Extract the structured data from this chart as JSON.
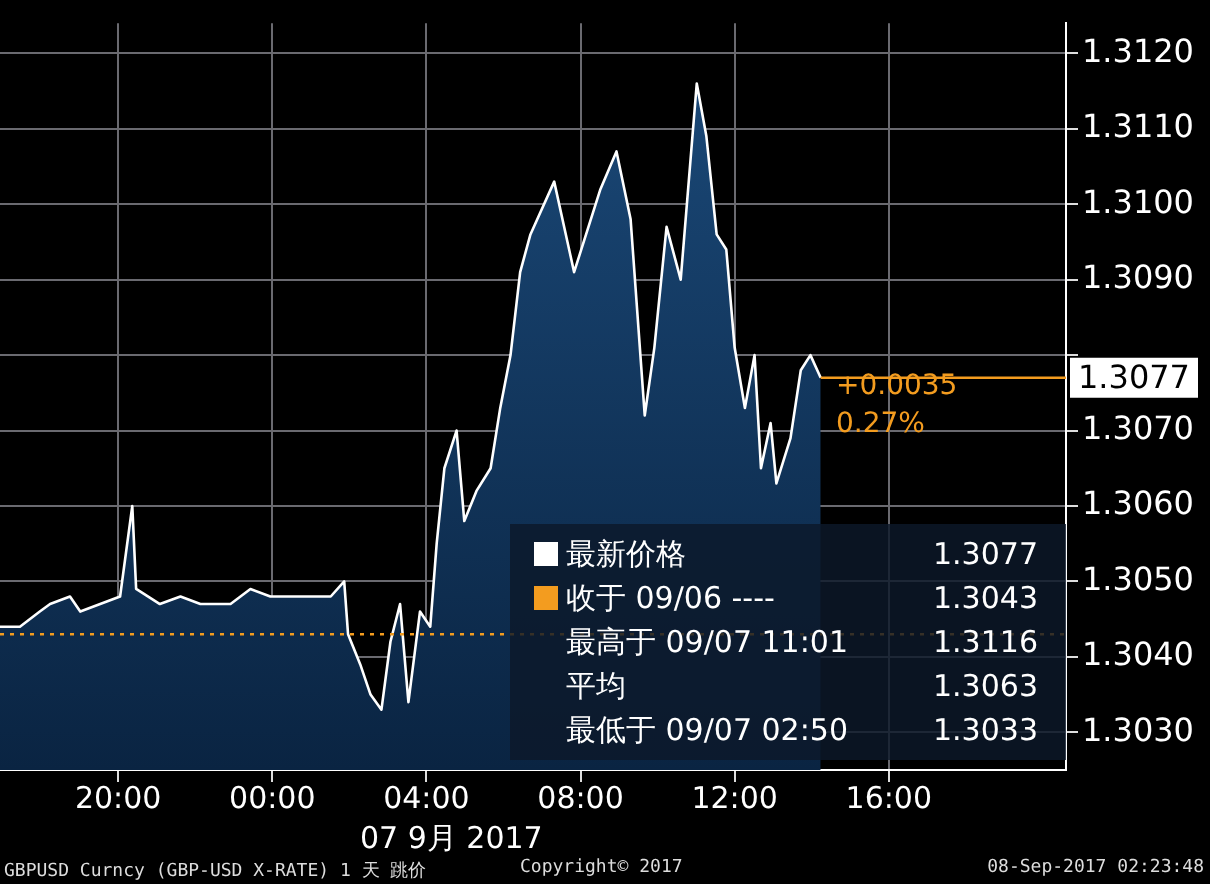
{
  "chart_data": {
    "type": "area",
    "xlabel": "07 9月 2017",
    "x": [
      "2017-09-06T16:56",
      "2017-09-06T17:27",
      "2017-09-06T17:58",
      "2017-09-06T18:14",
      "2017-09-06T18:45",
      "2017-09-06T19:01",
      "2017-09-06T19:32",
      "2017-09-06T20:03",
      "2017-09-06T20:22",
      "2017-09-06T20:28",
      "2017-09-06T21:05",
      "2017-09-06T21:37",
      "2017-09-06T22:08",
      "2017-09-06T22:55",
      "2017-09-06T23:26",
      "2017-09-06T23:57",
      "2017-09-07T00:44",
      "2017-09-07T01:31",
      "2017-09-07T01:52",
      "2017-09-07T01:58",
      "2017-09-07T02:17",
      "2017-09-07T02:33",
      "2017-09-07T02:50",
      "2017-09-07T03:04",
      "2017-09-07T03:19",
      "2017-09-07T03:32",
      "2017-09-07T03:50",
      "2017-09-07T04:06",
      "2017-09-07T04:16",
      "2017-09-07T04:28",
      "2017-09-07T04:47",
      "2017-09-07T04:59",
      "2017-09-07T05:18",
      "2017-09-07T05:40",
      "2017-09-07T05:55",
      "2017-09-07T06:11",
      "2017-09-07T06:26",
      "2017-09-07T06:42",
      "2017-09-07T07:19",
      "2017-09-07T07:50",
      "2017-09-07T08:31",
      "2017-09-07T08:56",
      "2017-09-07T09:18",
      "2017-09-07T09:40",
      "2017-09-07T09:55",
      "2017-09-07T10:14",
      "2017-09-07T10:36",
      "2017-09-07T11:01",
      "2017-09-07T11:16",
      "2017-09-07T11:32",
      "2017-09-07T11:47",
      "2017-09-07T12:00",
      "2017-09-07T12:16",
      "2017-09-07T12:31",
      "2017-09-07T12:41",
      "2017-09-07T12:56",
      "2017-09-07T13:05",
      "2017-09-07T13:27",
      "2017-09-07T13:43",
      "2017-09-07T13:58",
      "2017-09-07T14:14"
    ],
    "series": [
      {
        "name": "最新价格",
        "color": "#ffffff",
        "values": [
          1.3044,
          1.3044,
          1.3046,
          1.3047,
          1.3048,
          1.3046,
          1.3047,
          1.3048,
          1.306,
          1.3049,
          1.3047,
          1.3048,
          1.3047,
          1.3047,
          1.3049,
          1.3048,
          1.3048,
          1.3048,
          1.305,
          1.3043,
          1.3039,
          1.3035,
          1.3033,
          1.3042,
          1.3047,
          1.3034,
          1.3046,
          1.3044,
          1.3055,
          1.3065,
          1.307,
          1.3058,
          1.3062,
          1.3065,
          1.3073,
          1.308,
          1.3091,
          1.3096,
          1.3103,
          1.3091,
          1.3102,
          1.3107,
          1.3098,
          1.3072,
          1.3081,
          1.3097,
          1.309,
          1.3116,
          1.3109,
          1.3096,
          1.3094,
          1.3081,
          1.3073,
          1.308,
          1.3065,
          1.3071,
          1.3063,
          1.3069,
          1.3078,
          1.308,
          1.3077
        ]
      }
    ],
    "xlim": [
      "2017-09-06T16:56",
      "2017-09-07T20:36"
    ],
    "xticks": [
      {
        "value": "2017-09-06T20:00",
        "label": "20:00"
      },
      {
        "value": "2017-09-07T00:00",
        "label": "00:00"
      },
      {
        "value": "2017-09-07T04:00",
        "label": "04:00"
      },
      {
        "value": "2017-09-07T08:00",
        "label": "08:00"
      },
      {
        "value": "2017-09-07T12:00",
        "label": "12:00"
      },
      {
        "value": "2017-09-07T16:00",
        "label": "16:00"
      }
    ],
    "ylim": [
      1.3025,
      1.3124
    ],
    "yticks": [
      {
        "value": 1.303,
        "label": "1.3030"
      },
      {
        "value": 1.304,
        "label": "1.3040"
      },
      {
        "value": 1.305,
        "label": "1.3050"
      },
      {
        "value": 1.306,
        "label": "1.3060"
      },
      {
        "value": 1.307,
        "label": "1.3070"
      },
      {
        "value": 1.308,
        "label": null
      },
      {
        "value": 1.309,
        "label": "1.3090"
      },
      {
        "value": 1.31,
        "label": "1.3100"
      },
      {
        "value": 1.311,
        "label": "1.3110"
      },
      {
        "value": 1.312,
        "label": "1.3120"
      }
    ],
    "ref_lines": [
      {
        "axis": "y",
        "value": 1.3043,
        "label": "收于 09/06 ----",
        "color": "#f39c1f",
        "line_style": "dotted"
      },
      {
        "axis": "y",
        "value": 1.3077,
        "label": "1.3077",
        "color": "#f39c1f",
        "line_style": "solid"
      }
    ],
    "annotations": [
      "1.3077",
      "1.3043",
      "最高于 09/07 11:01",
      "1.3116",
      "平均",
      "1.3063",
      "最低于 09/07 02:50",
      "1.3033",
      "+0.0035",
      "0.27%",
      "GBPUSD Curncy (GBP-USD X-RATE) 1 天  跳价",
      "Copyright© 2017",
      "08-Sep-2017 02:23:48"
    ],
    "grid": true,
    "legend": "bottom right",
    "marker": "none",
    "line_style": "solid"
  }
}
